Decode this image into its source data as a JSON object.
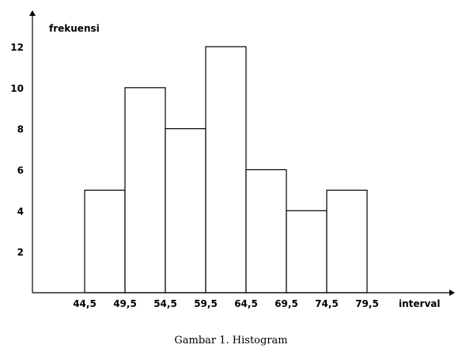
{
  "chart_data": {
    "type": "bar",
    "ylabel": "frekuensi",
    "xlabel": "interval",
    "x_ticks": [
      "44,5",
      "49,5",
      "54,5",
      "59,5",
      "64,5",
      "69,5",
      "74,5",
      "79,5"
    ],
    "y_ticks": [
      2,
      4,
      6,
      8,
      10,
      12
    ],
    "bins": [
      {
        "from": 44.5,
        "to": 49.5,
        "value": 5
      },
      {
        "from": 49.5,
        "to": 54.5,
        "value": 10
      },
      {
        "from": 54.5,
        "to": 59.5,
        "value": 8
      },
      {
        "from": 59.5,
        "to": 64.5,
        "value": 12
      },
      {
        "from": 64.5,
        "to": 69.5,
        "value": 6
      },
      {
        "from": 69.5,
        "to": 74.5,
        "value": 4
      },
      {
        "from": 74.5,
        "to": 79.5,
        "value": 5
      }
    ],
    "ylim": [
      0,
      12
    ],
    "grid": false,
    "legend": "none"
  },
  "caption": "Gambar 1. Histogram"
}
